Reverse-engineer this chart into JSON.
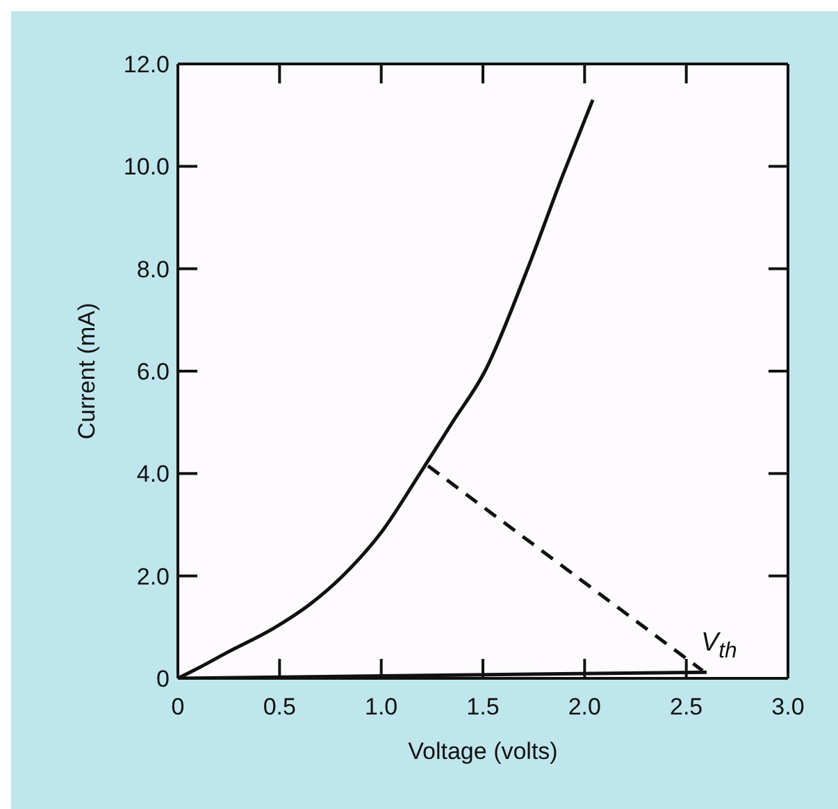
{
  "chart_data": {
    "type": "line",
    "xlabel": "Voltage (volts)",
    "ylabel": "Current (mA)",
    "xlim": [
      0,
      3.0
    ],
    "xticks": [
      0,
      0.5,
      {
        "value": 1,
        "label": "1.0"
      },
      1.5,
      {
        "value": 2,
        "label": "2.0"
      },
      2.5,
      {
        "value": 3,
        "label": "3.0"
      }
    ],
    "ylim": [
      0,
      12
    ],
    "yticks": [
      0,
      {
        "value": 2,
        "label": "2.0"
      },
      {
        "value": 4,
        "label": "4.0"
      },
      {
        "value": 6,
        "label": "6.0"
      },
      {
        "value": 8,
        "label": "8.0"
      },
      {
        "value": 10,
        "label": "10.0"
      },
      {
        "value": 12,
        "label": "12.0"
      }
    ],
    "marker": "none",
    "series": [
      {
        "color": "#111111",
        "line_style": "solid",
        "x": [
          0,
          0.1,
          0.24,
          0.48,
          0.65,
          0.81,
          1.0,
          1.19,
          1.35,
          1.51,
          1.71,
          1.89,
          2.04
        ],
        "values": [
          0,
          0.2,
          0.5,
          1,
          1.45,
          2,
          2.85,
          4,
          5,
          6,
          7.9,
          9.8,
          11.3
        ]
      },
      {
        "color": "#111111",
        "line_style": "solid",
        "x": [
          0,
          2.6
        ],
        "values": [
          0,
          0.12
        ]
      },
      {
        "color": "#111111",
        "line_style": "dashed",
        "x": [
          1.23,
          2.58
        ],
        "values": [
          4.15,
          0.15
        ]
      }
    ],
    "annotations": [
      {
        "text": "V$_{th}$",
        "x": 2.6,
        "y": 0.15
      }
    ]
  }
}
